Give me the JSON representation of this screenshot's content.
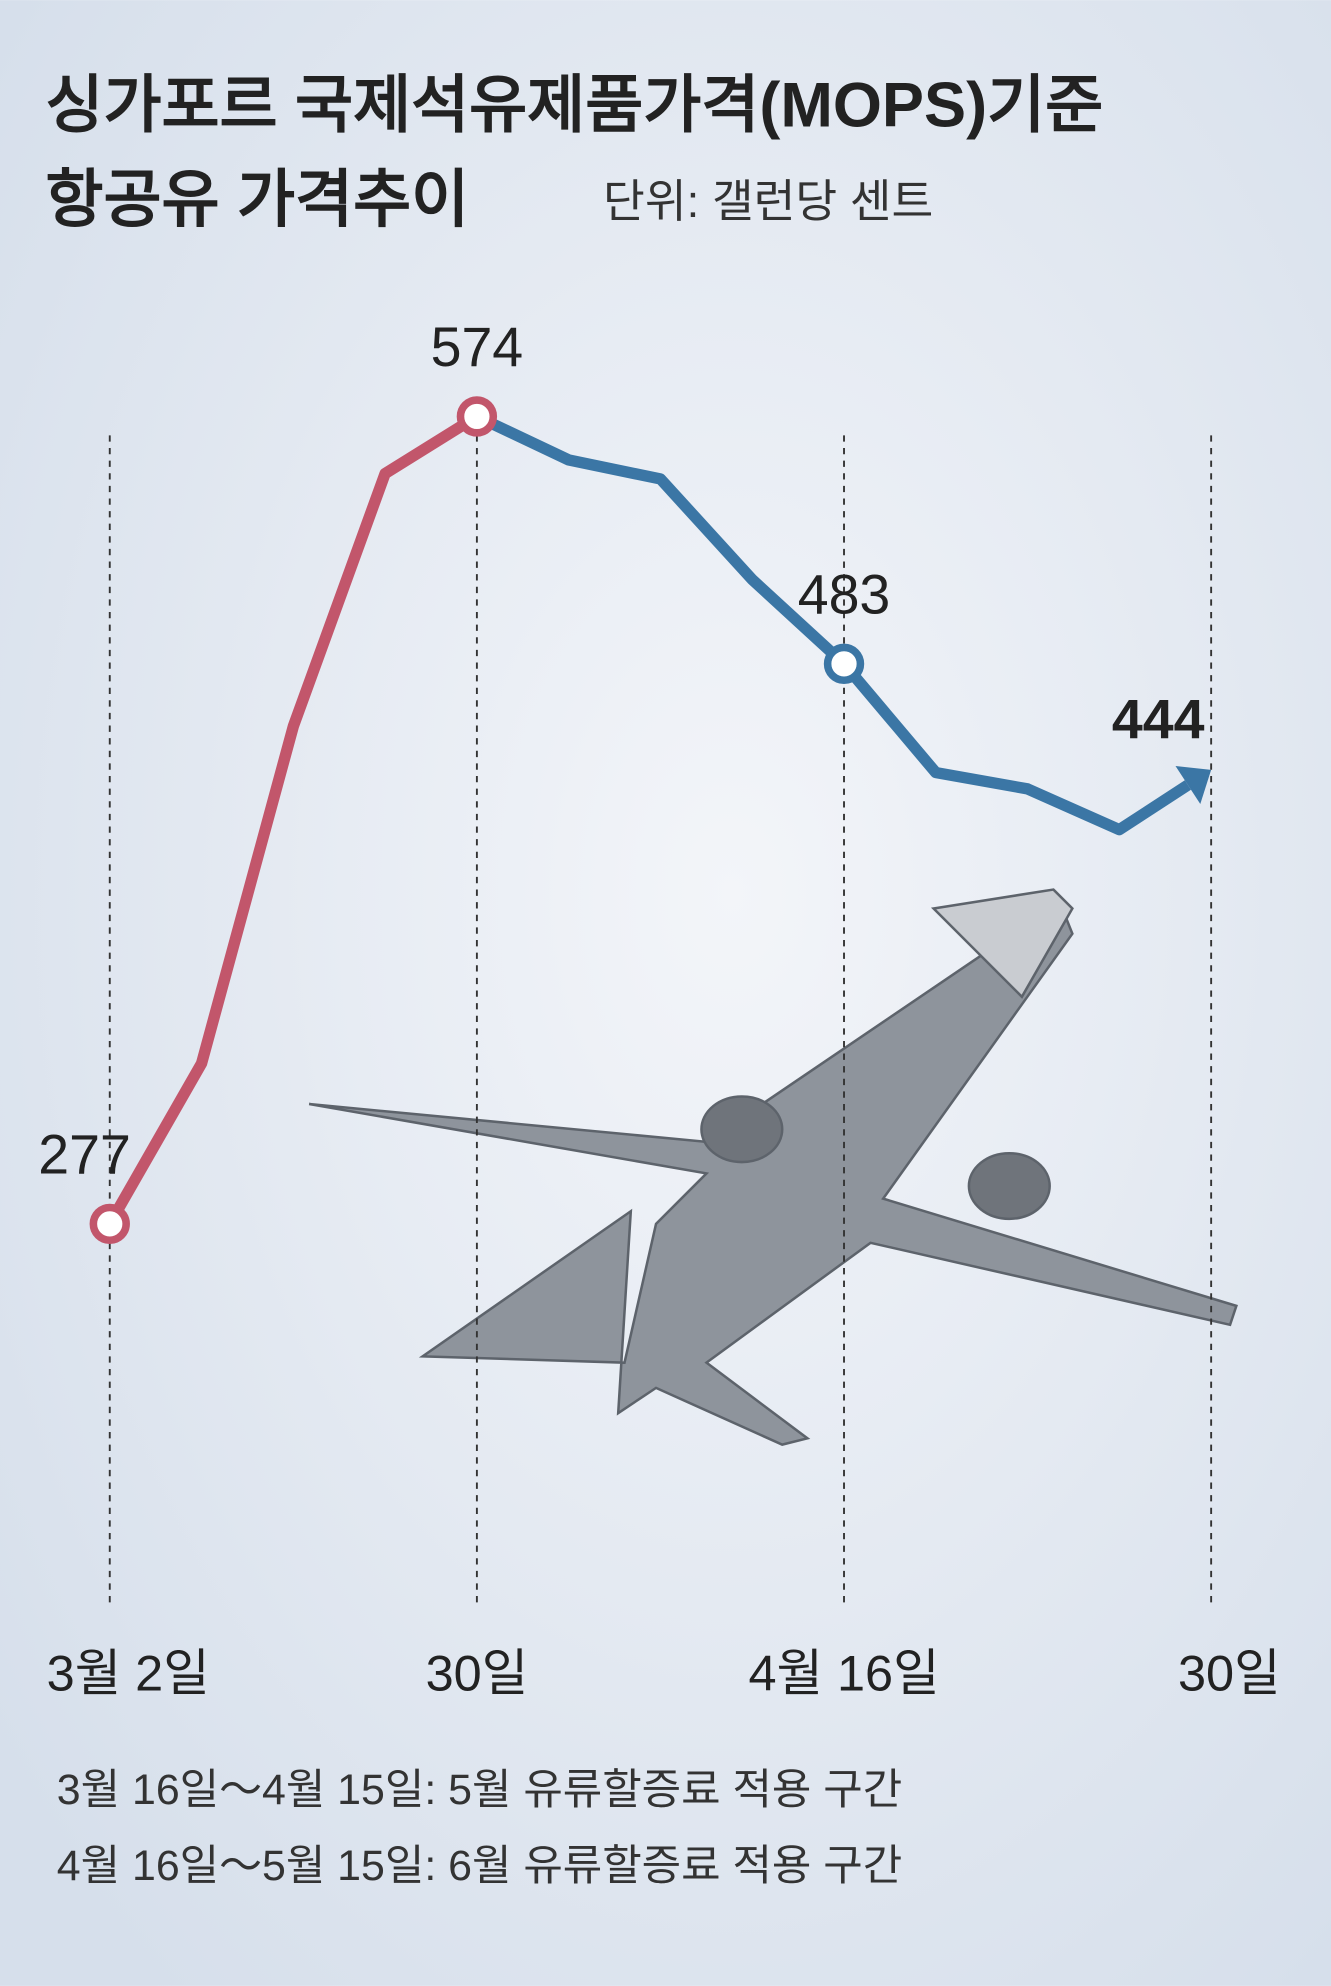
{
  "chart_data": {
    "type": "line",
    "title": "싱가포르 국제석유제품가격(MOPS)기준",
    "title2": "항공유 가격추이",
    "unit": "단위: 갤런당 센트",
    "categories": [
      "3월 2일",
      null,
      null,
      null,
      "30일",
      null,
      null,
      null,
      "4월 16일",
      null,
      null,
      null,
      "30일"
    ],
    "series": [
      {
        "color": "#c2566b",
        "values": [
          277,
          336,
          460,
          553,
          574,
          null,
          null,
          null,
          null,
          null,
          null,
          null,
          null
        ]
      },
      {
        "color": "#3b76a5",
        "values": [
          null,
          null,
          null,
          null,
          574,
          558,
          551,
          514,
          483,
          443,
          437,
          422,
          444
        ]
      }
    ],
    "notes": [
      "3월 16일～4월 15일: 5월 유류할증료 적용 구간",
      "4월 16일～5월 15일: 6월 유류할증료 적용 구간"
    ]
  }
}
